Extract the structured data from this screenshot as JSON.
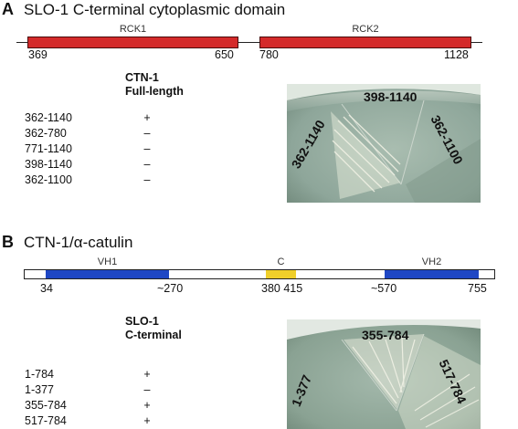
{
  "panel_a": {
    "letter": "A",
    "title": "SLO-1 C-terminal cytoplasmic domain",
    "domains": [
      {
        "label": "RCK1",
        "start": "369",
        "end": "650"
      },
      {
        "label": "RCK2",
        "start": "780",
        "end": "1128"
      }
    ],
    "table_header_line1": "CTN-1",
    "table_header_line2": "Full-length",
    "rows": [
      {
        "construct": "362-1140",
        "result": "+"
      },
      {
        "construct": "362-780",
        "result": "–"
      },
      {
        "construct": "771-1140",
        "result": "–"
      },
      {
        "construct": "398-1140",
        "result": "–"
      },
      {
        "construct": "362-1100",
        "result": "–"
      }
    ],
    "plate_labels": {
      "top": "398-1140",
      "left": "362-1140",
      "right": "362-1100"
    }
  },
  "panel_b": {
    "letter": "B",
    "title": "CTN-1/α-catulin",
    "domains": [
      {
        "label": "VH1",
        "color": "#1f47c4"
      },
      {
        "label": "C",
        "color": "#f0cf2a"
      },
      {
        "label": "VH2",
        "color": "#1f47c4"
      }
    ],
    "positions": [
      "34",
      "~270",
      "380 415",
      "~570",
      "755"
    ],
    "table_header_line1": "SLO-1",
    "table_header_line2": "C-terminal",
    "rows": [
      {
        "construct": "1-784",
        "result": "+"
      },
      {
        "construct": "1-377",
        "result": "–"
      },
      {
        "construct": "355-784",
        "result": "+"
      },
      {
        "construct": "517-784",
        "result": "+"
      }
    ],
    "plate_labels": {
      "top": "355-784",
      "left": "1-377",
      "right": "517-784"
    }
  }
}
